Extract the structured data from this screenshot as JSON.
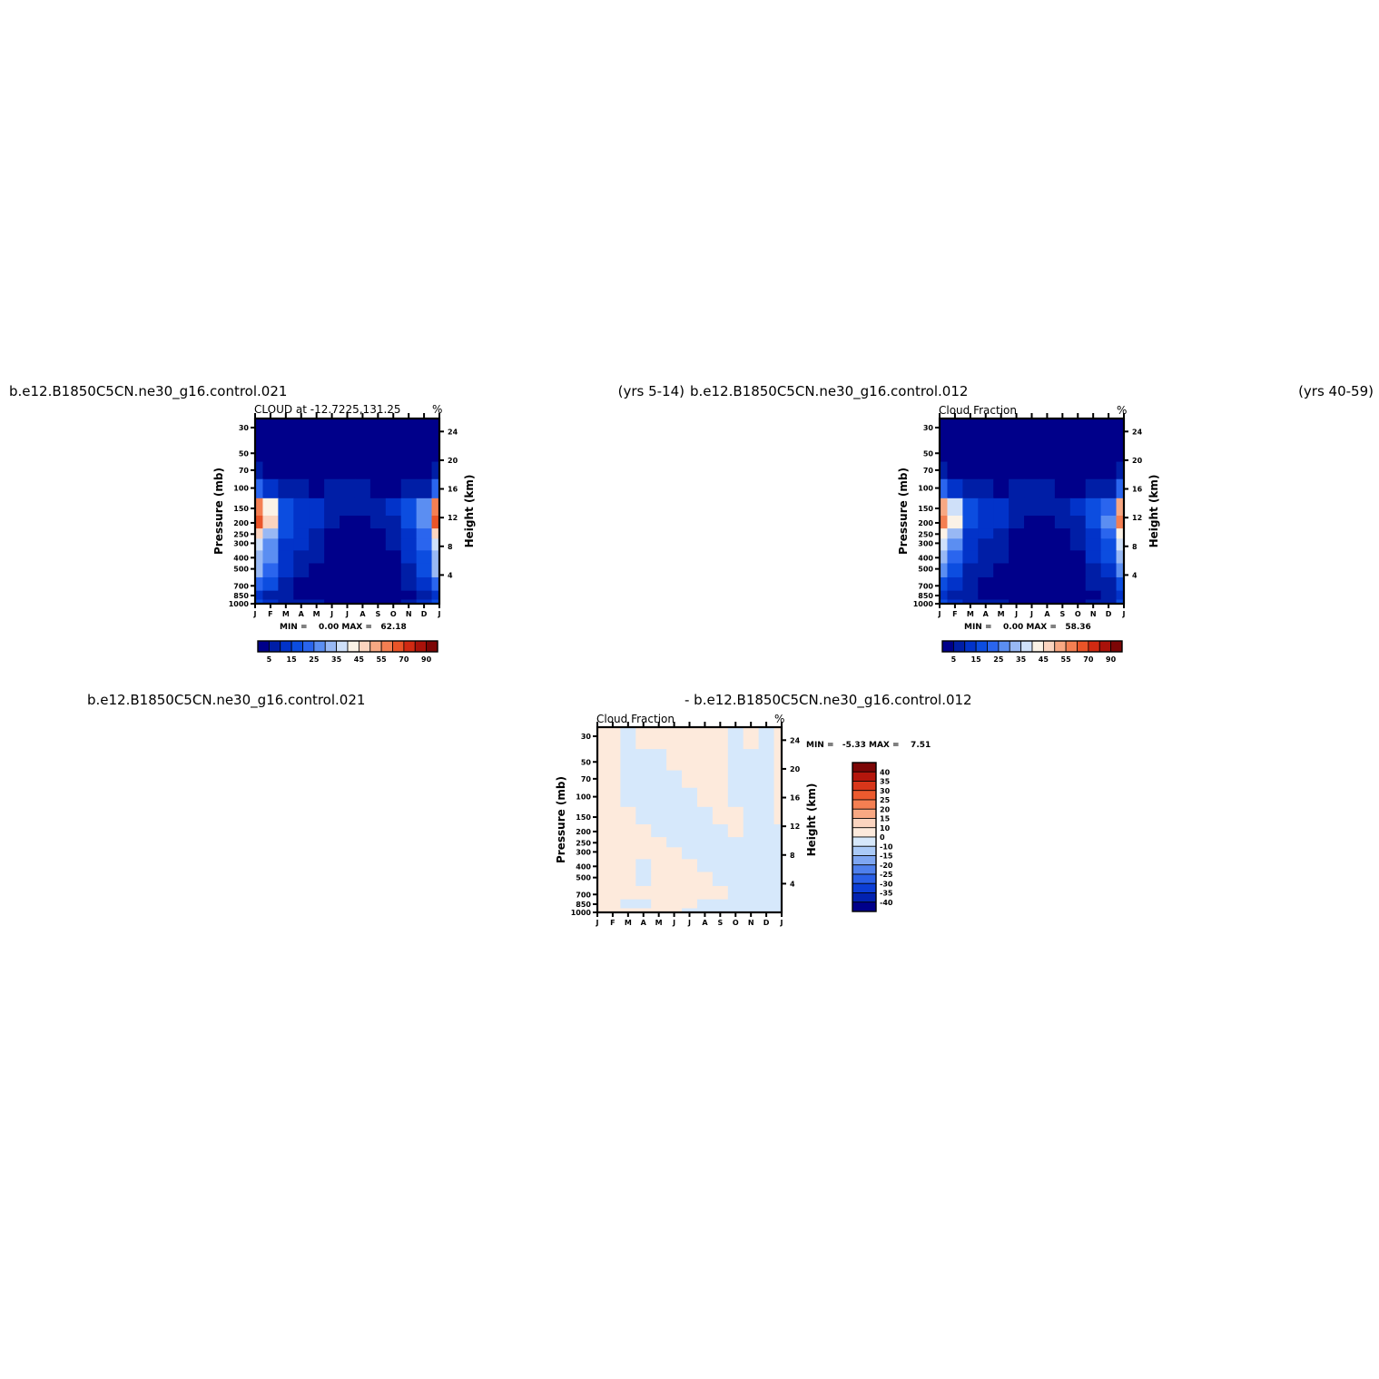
{
  "headers": {
    "panel1_case": "b.e12.B1850C5CN.ne30_g16.control.021",
    "panel1_years": "(yrs 5-14)",
    "panel2_case": "b.e12.B1850C5CN.ne30_g16.control.012",
    "panel2_years": "(yrs 40-59)",
    "diff_case1": "b.e12.B1850C5CN.ne30_g16.control.021",
    "diff_case2": "- b.e12.B1850C5CN.ne30_g16.control.012"
  },
  "common": {
    "months": [
      "J",
      "F",
      "M",
      "A",
      "M",
      "J",
      "J",
      "A",
      "S",
      "O",
      "N",
      "D",
      "J"
    ],
    "pressure_ticks": [
      "30",
      "50",
      "70",
      "100",
      "150",
      "200",
      "250",
      "300",
      "400",
      "500",
      "700",
      "850",
      "1000"
    ],
    "height_ticks": [
      "24",
      "20",
      "16",
      "12",
      "8",
      "4"
    ],
    "ylabel": "Pressure (mb)",
    "ylabel_right": "Height (km)",
    "units": "%",
    "seq_levels": [
      5,
      10,
      15,
      20,
      25,
      30,
      35,
      40,
      45,
      50,
      55,
      60,
      70,
      80,
      90
    ],
    "seq_labels": [
      "5",
      "15",
      "25",
      "35",
      "45",
      "55",
      "70",
      "90"
    ],
    "seq_colors": [
      "#00008a",
      "#001ea6",
      "#0233c9",
      "#0c4de0",
      "#2a65ee",
      "#5b8ef2",
      "#98b8f4",
      "#cfe0f9",
      "#fbf2e6",
      "#fbd4bf",
      "#f8a883",
      "#f47f52",
      "#ea5428",
      "#d12a12",
      "#a9120a",
      "#7c0606"
    ],
    "diff_levels": [
      "40",
      "35",
      "30",
      "25",
      "20",
      "15",
      "10",
      "0",
      "-10",
      "-15",
      "-20",
      "-25",
      "-30",
      "-35",
      "-40"
    ],
    "diff_colors": [
      "#7c0606",
      "#b4160c",
      "#d8361a",
      "#ec5a2e",
      "#f47f52",
      "#f8a883",
      "#fbd4bf",
      "#fdeadc",
      "#d6e8fb",
      "#aacaf7",
      "#7ea6f1",
      "#4f80ec",
      "#2a5fe6",
      "#0c3ed6",
      "#0222b0",
      "#00008a"
    ]
  },
  "panels": [
    {
      "title": "CLOUD at -12.7225,131.25",
      "minmax": "MIN =    0.00 MAX =   62.18"
    },
    {
      "title": "Cloud Fraction",
      "minmax": "MIN =    0.00 MAX =   58.36"
    },
    {
      "title": "Cloud Fraction",
      "minmax": "MIN =   -5.33 MAX =    7.51"
    }
  ],
  "chart_data": [
    {
      "type": "heatmap",
      "title": "CLOUD at -12.7225,131.25",
      "x": [
        "J",
        "F",
        "M",
        "A",
        "M",
        "J",
        "J",
        "A",
        "S",
        "O",
        "N",
        "D",
        "J"
      ],
      "y_pressure_mb": [
        30,
        50,
        70,
        100,
        150,
        200,
        250,
        300,
        400,
        500,
        700,
        850,
        1000
      ],
      "values": [
        [
          0,
          0,
          0,
          0,
          0,
          0,
          0,
          0,
          0,
          0,
          0,
          0,
          0
        ],
        [
          0,
          0,
          0,
          0,
          0,
          0,
          0,
          0,
          0,
          0,
          0,
          0,
          0
        ],
        [
          5,
          3,
          1,
          0,
          0,
          0,
          0,
          0,
          0,
          0,
          1,
          2,
          5
        ],
        [
          22,
          13,
          7,
          5,
          4,
          5,
          5,
          5,
          4,
          4,
          5,
          8,
          22
        ],
        [
          55,
          40,
          16,
          13,
          10,
          8,
          9,
          8,
          8,
          10,
          15,
          25,
          55
        ],
        [
          60,
          45,
          17,
          14,
          11,
          5,
          4,
          4,
          5,
          9,
          16,
          28,
          60
        ],
        [
          45,
          34,
          15,
          12,
          9,
          3,
          1,
          1,
          3,
          8,
          14,
          24,
          45
        ],
        [
          38,
          28,
          13,
          10,
          7,
          2,
          0,
          0,
          2,
          6,
          12,
          20,
          38
        ],
        [
          33,
          25,
          12,
          8,
          5,
          1,
          0,
          0,
          1,
          4,
          10,
          18,
          33
        ],
        [
          30,
          20,
          10,
          5,
          3,
          0,
          0,
          0,
          0,
          2,
          7,
          15,
          30
        ],
        [
          20,
          15,
          8,
          4,
          1,
          0,
          0,
          0,
          0,
          1,
          5,
          10,
          20
        ],
        [
          12,
          9,
          5,
          3,
          1,
          0,
          0,
          0,
          0,
          1,
          3,
          7,
          12
        ],
        [
          16,
          14,
          9,
          7,
          5,
          3,
          2,
          2,
          3,
          4,
          6,
          10,
          16
        ]
      ],
      "min": 0.0,
      "max": 62.18
    },
    {
      "type": "heatmap",
      "title": "Cloud Fraction",
      "x": [
        "J",
        "F",
        "M",
        "A",
        "M",
        "J",
        "J",
        "A",
        "S",
        "O",
        "N",
        "D",
        "J"
      ],
      "y_pressure_mb": [
        30,
        50,
        70,
        100,
        150,
        200,
        250,
        300,
        400,
        500,
        700,
        850,
        1000
      ],
      "values": [
        [
          0,
          0,
          0,
          0,
          0,
          0,
          0,
          0,
          0,
          0,
          0,
          0,
          0
        ],
        [
          0,
          0,
          0,
          0,
          0,
          0,
          0,
          0,
          0,
          0,
          0,
          0,
          0
        ],
        [
          5,
          3,
          1,
          0,
          0,
          0,
          0,
          0,
          0,
          0,
          1,
          2,
          5
        ],
        [
          20,
          12,
          7,
          5,
          4,
          5,
          5,
          5,
          4,
          4,
          5,
          8,
          20
        ],
        [
          52,
          38,
          15,
          12,
          10,
          8,
          9,
          8,
          8,
          10,
          15,
          24,
          52
        ],
        [
          57,
          43,
          16,
          13,
          11,
          5,
          4,
          4,
          5,
          9,
          16,
          26,
          57
        ],
        [
          43,
          32,
          14,
          11,
          9,
          3,
          1,
          1,
          3,
          8,
          14,
          23,
          43
        ],
        [
          36,
          27,
          12,
          9,
          7,
          2,
          0,
          0,
          2,
          6,
          12,
          19,
          36
        ],
        [
          31,
          24,
          11,
          8,
          5,
          1,
          0,
          0,
          1,
          4,
          10,
          17,
          31
        ],
        [
          28,
          19,
          9,
          5,
          3,
          0,
          0,
          0,
          0,
          2,
          7,
          14,
          28
        ],
        [
          19,
          14,
          7,
          4,
          1,
          0,
          0,
          0,
          0,
          1,
          5,
          9,
          19
        ],
        [
          11,
          8,
          5,
          3,
          1,
          0,
          0,
          0,
          0,
          1,
          3,
          6,
          11
        ],
        [
          15,
          13,
          9,
          7,
          5,
          3,
          2,
          2,
          3,
          4,
          6,
          9,
          15
        ]
      ],
      "min": 0.0,
      "max": 58.36
    },
    {
      "type": "heatmap",
      "title": "Cloud Fraction",
      "x": [
        "J",
        "F",
        "M",
        "A",
        "M",
        "J",
        "J",
        "A",
        "S",
        "O",
        "N",
        "D",
        "J"
      ],
      "y_pressure_mb": [
        30,
        50,
        70,
        100,
        150,
        200,
        250,
        300,
        400,
        500,
        700,
        850,
        1000
      ],
      "values": [
        [
          1,
          1,
          -1,
          1,
          1,
          1,
          1,
          1,
          1,
          -1,
          1,
          -1,
          1
        ],
        [
          1,
          1,
          -1,
          -1,
          -1,
          1,
          1,
          1,
          1,
          -1,
          -1,
          -1,
          1
        ],
        [
          1,
          1,
          -1,
          -1,
          -1,
          -1,
          1,
          1,
          1,
          -1,
          -1,
          -1,
          1
        ],
        [
          1,
          1,
          -1,
          -1,
          -1,
          -1,
          -1,
          1,
          1,
          -1,
          -1,
          -1,
          1
        ],
        [
          1,
          1,
          1,
          -1,
          -1,
          -1,
          -1,
          -1,
          1,
          1,
          -1,
          -1,
          1
        ],
        [
          1,
          1,
          1,
          1,
          -1,
          -1,
          -1,
          -1,
          -1,
          1,
          -1,
          -1,
          -1
        ],
        [
          1,
          1,
          1,
          1,
          1,
          -1,
          -1,
          -1,
          -1,
          -1,
          -1,
          -1,
          -1
        ],
        [
          1,
          1,
          1,
          1,
          1,
          1,
          -1,
          -1,
          -1,
          -1,
          -1,
          -1,
          -1
        ],
        [
          1,
          1,
          1,
          -1,
          1,
          1,
          1,
          -1,
          -1,
          -1,
          -1,
          -1,
          -1
        ],
        [
          1,
          1,
          1,
          -1,
          1,
          1,
          1,
          1,
          -1,
          -1,
          -1,
          -1,
          -1
        ],
        [
          1,
          1,
          1,
          1,
          1,
          1,
          1,
          1,
          1,
          -1,
          -1,
          -1,
          -1
        ],
        [
          1,
          1,
          -1,
          -1,
          1,
          1,
          1,
          -1,
          -1,
          -1,
          -1,
          -1,
          -1
        ],
        [
          1,
          1,
          1,
          1,
          1,
          1,
          -1,
          -1,
          -1,
          -1,
          -1,
          -1,
          -1
        ]
      ],
      "min": -5.33,
      "max": 7.51
    }
  ]
}
